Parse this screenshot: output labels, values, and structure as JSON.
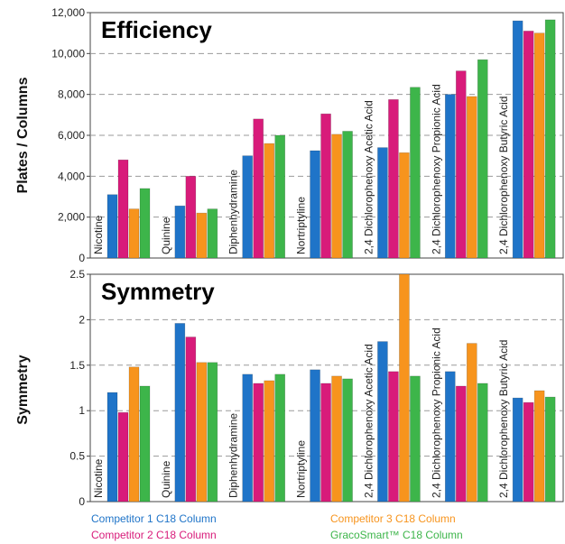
{
  "colors": [
    "#1f74c8",
    "#d81b7a",
    "#f7941d",
    "#3db54a"
  ],
  "chart_data": [
    {
      "type": "bar",
      "title": "Efficiency",
      "ylabel": "Plates / Columns",
      "ylim": [
        0,
        12000
      ],
      "yticks": [
        "0",
        "2,000",
        "4,000",
        "6,000",
        "8,000",
        "10,000",
        "12,000"
      ],
      "categories": [
        "Nicotine",
        "Quinine",
        "Diphenhydramine",
        "Nortriptyline",
        "2,4 Dichlorophenoxy Acetic Acid",
        "2,4 Dichlorophenoxy Propionic Acid",
        "2,4 Dichlorophenoxy Butyric Acid"
      ],
      "series": [
        {
          "name": "Competitor 1 C18 Column",
          "values": [
            3100,
            2550,
            5000,
            5250,
            5400,
            8000,
            11600
          ]
        },
        {
          "name": "Competitor 2 C18 Column",
          "values": [
            4800,
            4000,
            6800,
            7050,
            7750,
            9150,
            11100
          ]
        },
        {
          "name": "Competitor 3 C18 Column",
          "values": [
            2400,
            2200,
            5600,
            6050,
            5150,
            7900,
            11000
          ]
        },
        {
          "name": "GracoSmart™ C18 Column",
          "values": [
            3400,
            2400,
            6000,
            6200,
            8350,
            9700,
            11650
          ]
        }
      ],
      "grid": true
    },
    {
      "type": "bar",
      "title": "Symmetry",
      "ylabel": "Symmetry",
      "ylim": [
        0,
        2.5
      ],
      "yticks": [
        "0",
        "0.5",
        "1",
        "1.5",
        "2",
        "2.5"
      ],
      "categories": [
        "Nicotine",
        "Quinine",
        "Diphenhydramine",
        "Nortriptyline",
        "2,4 Dichlorophenoxy Acetic Acid",
        "2,4 Dichlorophenoxy Propionic Acid",
        "2,4 Dichlorophenoxy Butyric Acid"
      ],
      "series": [
        {
          "name": "Competitor 1 C18 Column",
          "values": [
            1.2,
            1.96,
            1.4,
            1.45,
            1.76,
            1.43,
            1.14
          ]
        },
        {
          "name": "Competitor 2 C18 Column",
          "values": [
            0.98,
            1.81,
            1.3,
            1.3,
            1.43,
            1.27,
            1.09
          ]
        },
        {
          "name": "Competitor 3 C18 Column",
          "values": [
            1.48,
            1.53,
            1.33,
            1.38,
            2.6,
            1.74,
            1.22
          ]
        },
        {
          "name": "GracoSmart™ C18 Column",
          "values": [
            1.27,
            1.53,
            1.4,
            1.35,
            1.38,
            1.3,
            1.15
          ]
        }
      ],
      "grid": true
    }
  ]
}
